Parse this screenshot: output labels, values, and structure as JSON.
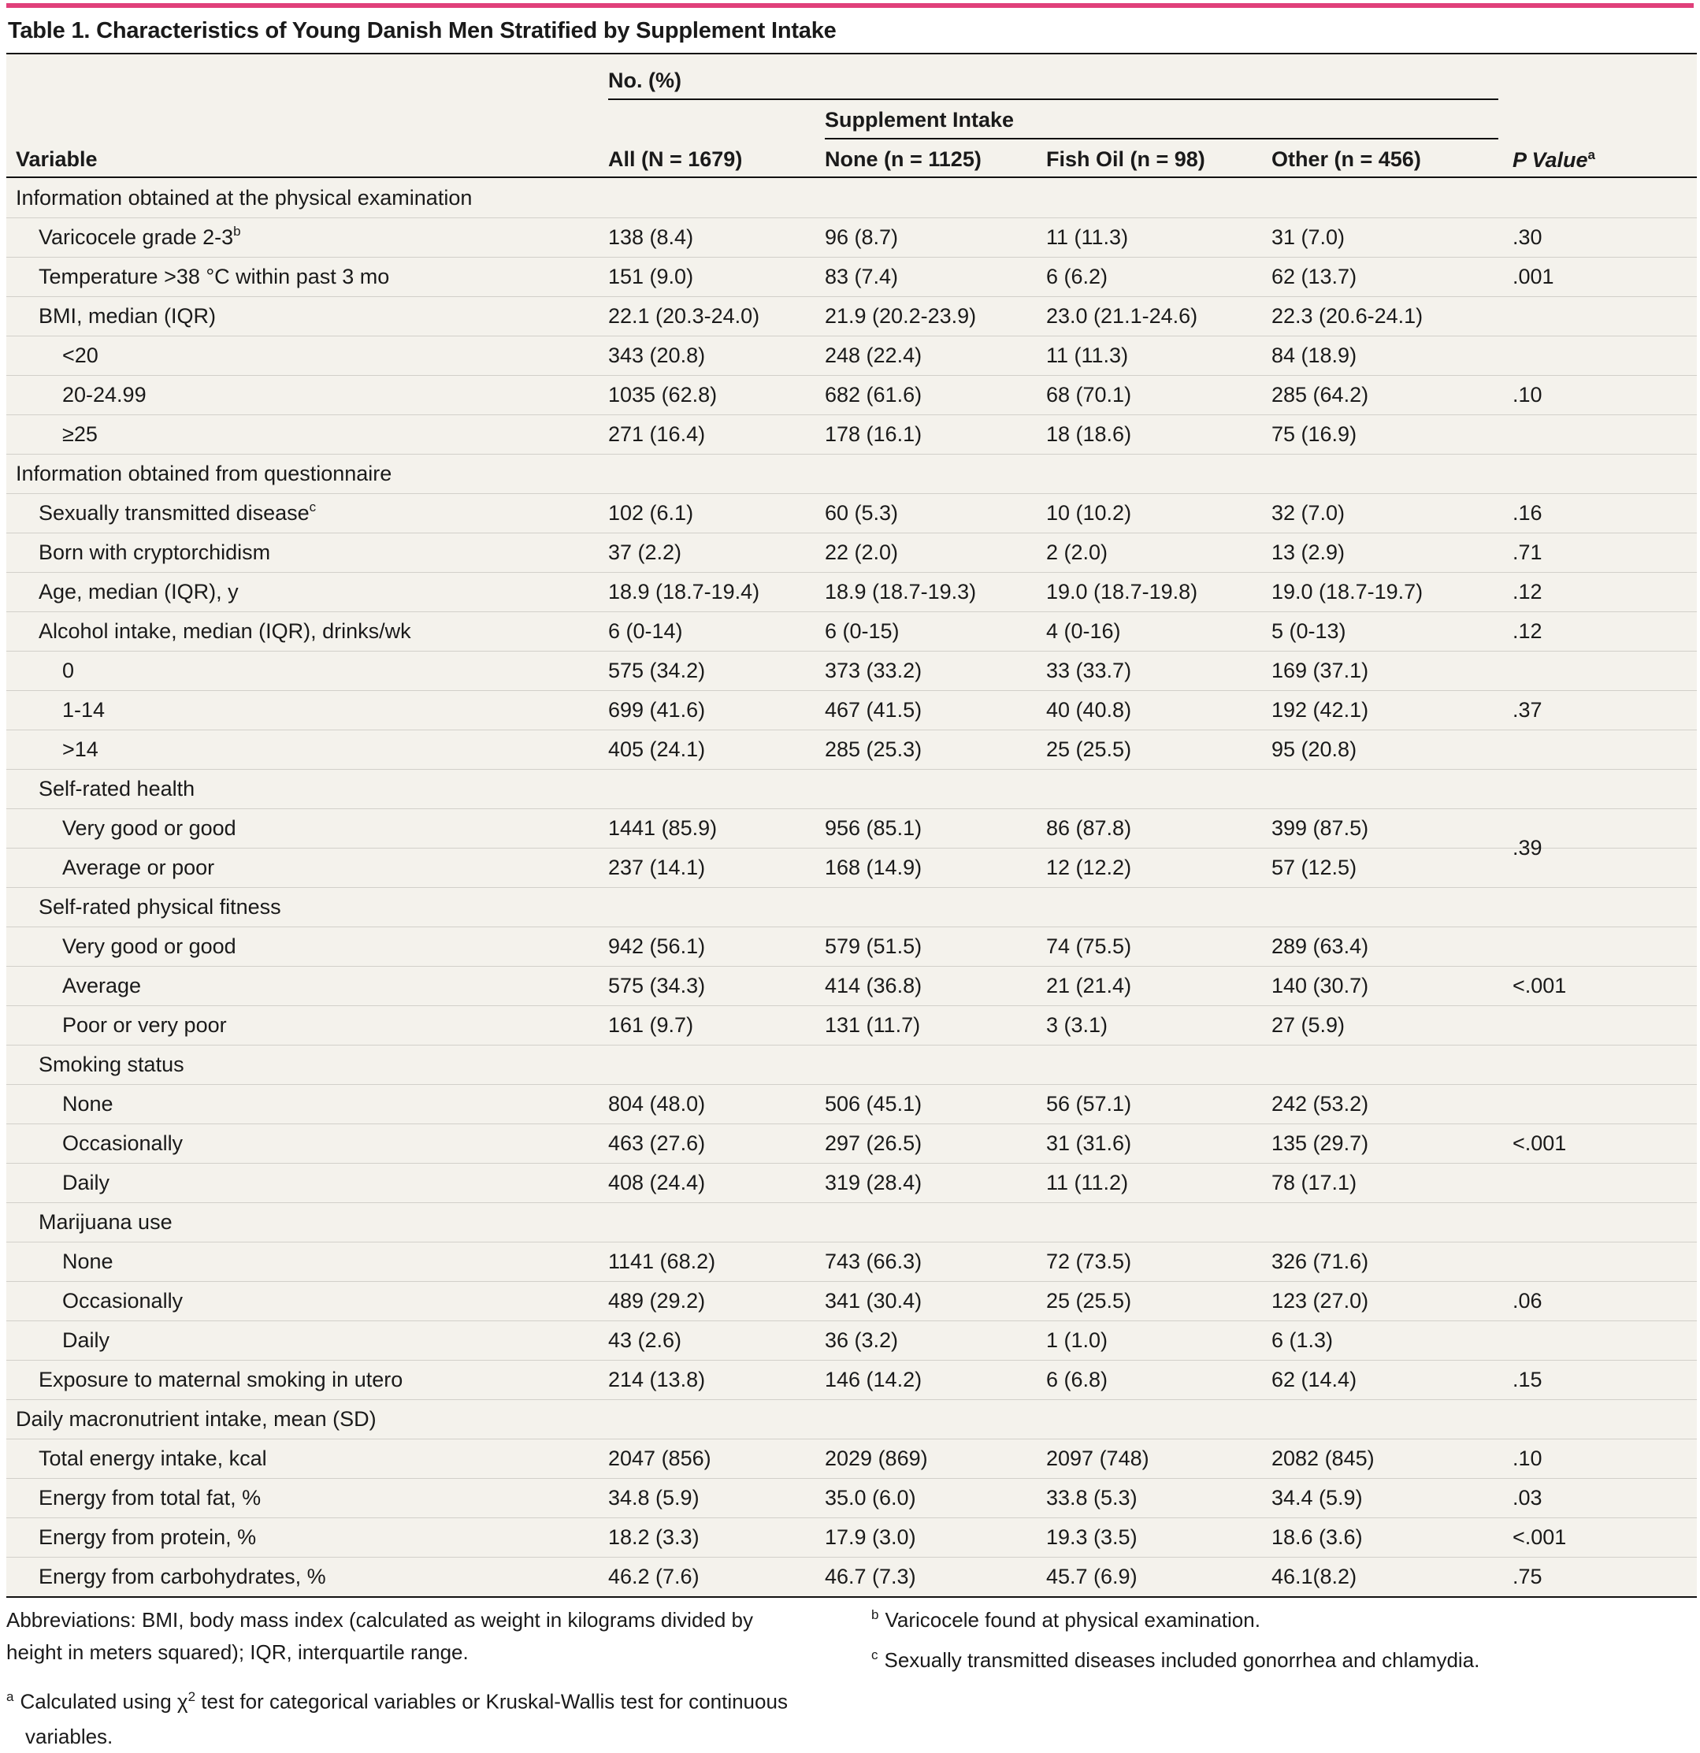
{
  "title": "Table 1. Characteristics of Young Danish Men Stratified by Supplement Intake",
  "colors": {
    "accent_bar": "#e0407a",
    "panel_bg": "#f4f2ec"
  },
  "headers": {
    "no_pct": "No. (%)",
    "supplement_intake": "Supplement Intake",
    "variable": "Variable",
    "all": "All (N = 1679)",
    "none": "None (n = 1125)",
    "fish_oil": "Fish Oil (n = 98)",
    "other": "Other (n = 456)",
    "p_value": "P Value",
    "p_value_mark": "a"
  },
  "rows": [
    {
      "label": "Information obtained at the physical examination",
      "indent": 0,
      "values": [
        "",
        "",
        "",
        ""
      ]
    },
    {
      "label": "Varicocele grade 2-3",
      "mark": "b",
      "indent": 1,
      "values": [
        "138 (8.4)",
        "96 (8.7)",
        "11 (11.3)",
        "31 (7.0)"
      ],
      "p": ".30"
    },
    {
      "label": "Temperature >38 °C within past 3 mo",
      "indent": 1,
      "values": [
        "151 (9.0)",
        "83 (7.4)",
        "6 (6.2)",
        "62 (13.7)"
      ],
      "p": ".001"
    },
    {
      "label": "BMI, median (IQR)",
      "indent": 1,
      "values": [
        "22.1 (20.3-24.0)",
        "21.9 (20.2-23.9)",
        "23.0 (21.1-24.6)",
        "22.3 (20.6-24.1)"
      ]
    },
    {
      "label": "<20",
      "indent": 2,
      "values": [
        "343 (20.8)",
        "248 (22.4)",
        "11 (11.3)",
        "84 (18.9)"
      ]
    },
    {
      "label": "20-24.99",
      "indent": 2,
      "values": [
        "1035 (62.8)",
        "682 (61.6)",
        "68 (70.1)",
        "285 (64.2)"
      ]
    },
    {
      "label": "≥25",
      "indent": 2,
      "values": [
        "271 (16.4)",
        "178 (16.1)",
        "18 (18.6)",
        "75 (16.9)"
      ]
    },
    {
      "label": "Information obtained from questionnaire",
      "indent": 0,
      "values": [
        "",
        "",
        "",
        ""
      ]
    },
    {
      "label": "Sexually transmitted disease",
      "mark": "c",
      "indent": 1,
      "values": [
        "102 (6.1)",
        "60 (5.3)",
        "10 (10.2)",
        "32 (7.0)"
      ],
      "p": ".16"
    },
    {
      "label": "Born with cryptorchidism",
      "indent": 1,
      "values": [
        "37 (2.2)",
        "22 (2.0)",
        "2 (2.0)",
        "13 (2.9)"
      ],
      "p": ".71"
    },
    {
      "label": "Age, median (IQR), y",
      "indent": 1,
      "values": [
        "18.9 (18.7-19.4)",
        "18.9 (18.7-19.3)",
        "19.0 (18.7-19.8)",
        "19.0 (18.7-19.7)"
      ],
      "p": ".12"
    },
    {
      "label": "Alcohol intake, median (IQR), drinks/wk",
      "indent": 1,
      "values": [
        "6 (0-14)",
        "6 (0-15)",
        "4 (0-16)",
        "5 (0-13)"
      ],
      "p": ".12"
    },
    {
      "label": "0",
      "indent": 2,
      "values": [
        "575 (34.2)",
        "373 (33.2)",
        "33 (33.7)",
        "169 (37.1)"
      ]
    },
    {
      "label": "1-14",
      "indent": 2,
      "values": [
        "699 (41.6)",
        "467 (41.5)",
        "40 (40.8)",
        "192 (42.1)"
      ]
    },
    {
      "label": ">14",
      "indent": 2,
      "values": [
        "405 (24.1)",
        "285 (25.3)",
        "25 (25.5)",
        "95 (20.8)"
      ]
    },
    {
      "label": "Self-rated health",
      "indent": 1,
      "values": [
        "",
        "",
        "",
        ""
      ]
    },
    {
      "label": "Very good or good",
      "indent": 2,
      "values": [
        "1441 (85.9)",
        "956 (85.1)",
        "86 (87.8)",
        "399 (87.5)"
      ]
    },
    {
      "label": "Average or poor",
      "indent": 2,
      "values": [
        "237 (14.1)",
        "168 (14.9)",
        "12 (12.2)",
        "57 (12.5)"
      ]
    },
    {
      "label": "Self-rated physical fitness",
      "indent": 1,
      "values": [
        "",
        "",
        "",
        ""
      ]
    },
    {
      "label": "Very good or good",
      "indent": 2,
      "values": [
        "942 (56.1)",
        "579 (51.5)",
        "74 (75.5)",
        "289 (63.4)"
      ]
    },
    {
      "label": "Average",
      "indent": 2,
      "values": [
        "575 (34.3)",
        "414 (36.8)",
        "21 (21.4)",
        "140 (30.7)"
      ]
    },
    {
      "label": "Poor or very poor",
      "indent": 2,
      "values": [
        "161 (9.7)",
        "131 (11.7)",
        "3 (3.1)",
        "27 (5.9)"
      ]
    },
    {
      "label": "Smoking status",
      "indent": 1,
      "values": [
        "",
        "",
        "",
        ""
      ]
    },
    {
      "label": "None",
      "indent": 2,
      "values": [
        "804 (48.0)",
        "506 (45.1)",
        "56 (57.1)",
        "242 (53.2)"
      ]
    },
    {
      "label": "Occasionally",
      "indent": 2,
      "values": [
        "463 (27.6)",
        "297 (26.5)",
        "31 (31.6)",
        "135 (29.7)"
      ]
    },
    {
      "label": "Daily",
      "indent": 2,
      "values": [
        "408 (24.4)",
        "319 (28.4)",
        "11 (11.2)",
        "78 (17.1)"
      ]
    },
    {
      "label": "Marijuana use",
      "indent": 1,
      "values": [
        "",
        "",
        "",
        ""
      ]
    },
    {
      "label": "None",
      "indent": 2,
      "values": [
        "1141 (68.2)",
        "743 (66.3)",
        "72 (73.5)",
        "326 (71.6)"
      ]
    },
    {
      "label": "Occasionally",
      "indent": 2,
      "values": [
        "489 (29.2)",
        "341 (30.4)",
        "25 (25.5)",
        "123 (27.0)"
      ]
    },
    {
      "label": "Daily",
      "indent": 2,
      "values": [
        "43 (2.6)",
        "36 (3.2)",
        "1 (1.0)",
        "6 (1.3)"
      ]
    },
    {
      "label": "Exposure to maternal smoking in utero",
      "indent": 1,
      "values": [
        "214 (13.8)",
        "146 (14.2)",
        "6 (6.8)",
        "62 (14.4)"
      ],
      "p": ".15"
    },
    {
      "label": "Daily macronutrient intake, mean (SD)",
      "indent": 0,
      "values": [
        "",
        "",
        "",
        ""
      ]
    },
    {
      "label": "Total energy intake, kcal",
      "indent": 1,
      "values": [
        "2047 (856)",
        "2029 (869)",
        "2097 (748)",
        "2082 (845)"
      ],
      "p": ".10"
    },
    {
      "label": "Energy from total fat, %",
      "indent": 1,
      "values": [
        "34.8 (5.9)",
        "35.0 (6.0)",
        "33.8 (5.3)",
        "34.4 (5.9)"
      ],
      "p": ".03"
    },
    {
      "label": "Energy from protein, %",
      "indent": 1,
      "values": [
        "18.2 (3.3)",
        "17.9 (3.0)",
        "19.3 (3.5)",
        "18.6 (3.6)"
      ],
      "p": "<.001"
    },
    {
      "label": "Energy from carbohydrates, %",
      "indent": 1,
      "values": [
        "46.2 (7.6)",
        "46.7 (7.3)",
        "45.7 (6.9)",
        "46.1(8.2)"
      ],
      "p": ".75"
    }
  ],
  "group_p": [
    {
      "p": ".10",
      "from": 4,
      "to": 6
    },
    {
      "p": ".37",
      "from": 12,
      "to": 14
    },
    {
      "p": ".39",
      "from": 16,
      "to": 17
    },
    {
      "p": "<.001",
      "from": 19,
      "to": 21
    },
    {
      "p": "<.001",
      "from": 23,
      "to": 25
    },
    {
      "p": ".06",
      "from": 27,
      "to": 29
    }
  ],
  "footnotes": {
    "abbrev_line1": "Abbreviations: BMI, body mass index (calculated as weight in kilograms divided by",
    "abbrev_line2": "height in meters squared); IQR, interquartile range.",
    "a_mark": "a",
    "a_line1_pre": "Calculated using χ",
    "a_line1_exp": "2",
    "a_line1_post": " test for categorical variables or Kruskal-Wallis test for continuous",
    "a_line2": "variables.",
    "b_mark": "b",
    "b_text": "Varicocele found at physical examination.",
    "c_mark": "c",
    "c_text": "Sexually transmitted diseases included gonorrhea and chlamydia."
  }
}
